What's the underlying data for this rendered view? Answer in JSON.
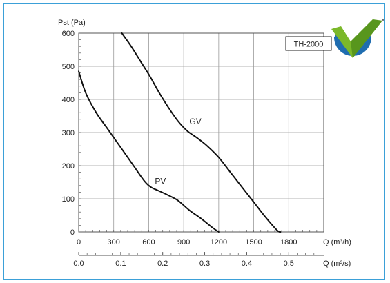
{
  "model_badge": "TH-2000",
  "logo": {
    "icon": "green-check-badge-icon",
    "mark": "*",
    "colors": {
      "check": "#7bb82a",
      "check_dark": "#3d7a12",
      "ring": "#1f6db0"
    }
  },
  "chart_data": {
    "type": "line",
    "ylabel": "Pst (Pa)",
    "xlabel": "Q (m³/h)",
    "x2label": "Q (m³/s)",
    "xlim": [
      0,
      2100
    ],
    "ylim": [
      0,
      600
    ],
    "grid": true,
    "x_ticks": [
      0,
      300,
      600,
      900,
      1200,
      1500,
      1800
    ],
    "y_ticks": [
      0,
      100,
      200,
      300,
      400,
      500,
      600
    ],
    "x2_ticks": [
      "0.0",
      "0.1",
      "0.2",
      "0.3",
      "0.4",
      "0.5"
    ],
    "x2_tick_values": [
      0.0,
      0.1,
      0.2,
      0.3,
      0.4,
      0.5
    ],
    "series": [
      {
        "name": "PV",
        "color": "#111111",
        "x": [
          0,
          60,
          150,
          250,
          360,
          460,
          560,
          620,
          680,
          760,
          850,
          950,
          1050,
          1150,
          1200
        ],
        "y": [
          485,
          420,
          360,
          310,
          255,
          205,
          155,
          135,
          125,
          112,
          95,
          65,
          40,
          12,
          0
        ]
      },
      {
        "name": "GV",
        "color": "#111111",
        "x": [
          370,
          450,
          530,
          610,
          690,
          770,
          850,
          930,
          1010,
          1100,
          1200,
          1300,
          1400,
          1500,
          1600,
          1700,
          1730
        ],
        "y": [
          600,
          560,
          515,
          470,
          420,
          375,
          335,
          305,
          285,
          260,
          225,
          180,
          135,
          90,
          45,
          5,
          0
        ]
      }
    ],
    "annotations": [
      {
        "text": "GV",
        "x": 1000,
        "y": 325
      },
      {
        "text": "PV",
        "x": 700,
        "y": 145
      }
    ]
  }
}
